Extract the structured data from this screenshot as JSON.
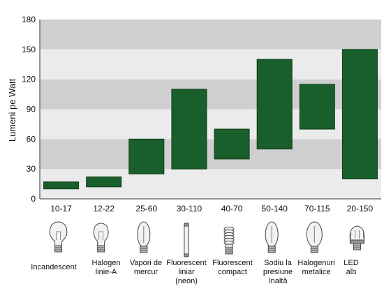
{
  "chart_data": {
    "type": "bar",
    "ylabel": "Lumeni pe Watt",
    "ylim": [
      0,
      180
    ],
    "yticks": [
      0,
      30,
      60,
      90,
      120,
      150,
      180
    ],
    "grid": "alternating horizontal bands",
    "categories": [
      "10-17",
      "12-22",
      "25-60",
      "30-110",
      "40-70",
      "50-140",
      "70-115",
      "20-150"
    ],
    "ranges": [
      [
        10,
        17
      ],
      [
        12,
        22
      ],
      [
        25,
        60
      ],
      [
        30,
        110
      ],
      [
        40,
        70
      ],
      [
        50,
        140
      ],
      [
        70,
        115
      ],
      [
        20,
        150
      ]
    ],
    "lamp_labels": [
      [
        "Incandescent"
      ],
      [
        "Halogen",
        "linie-A"
      ],
      [
        "Vapori de",
        "mercur"
      ],
      [
        "Fluorescent",
        "liniar",
        "(neon)"
      ],
      [
        "Fluorescent",
        "compact"
      ],
      [
        "Sodiu la",
        "presiune",
        "înaltă"
      ],
      [
        "Halogenuri",
        "metalice"
      ],
      [
        "LED",
        "alb"
      ]
    ],
    "lamp_icons": [
      "incandescent-bulb-icon",
      "halogen-bulb-icon",
      "mercury-vapor-lamp-icon",
      "fluorescent-tube-icon",
      "compact-fluorescent-icon",
      "sodium-lamp-icon",
      "metal-halide-lamp-icon",
      "led-bulb-icon"
    ],
    "colors": {
      "bar": "#195f2b",
      "band_dark": "#cfcfcf",
      "band_light": "#ebebeb"
    }
  }
}
